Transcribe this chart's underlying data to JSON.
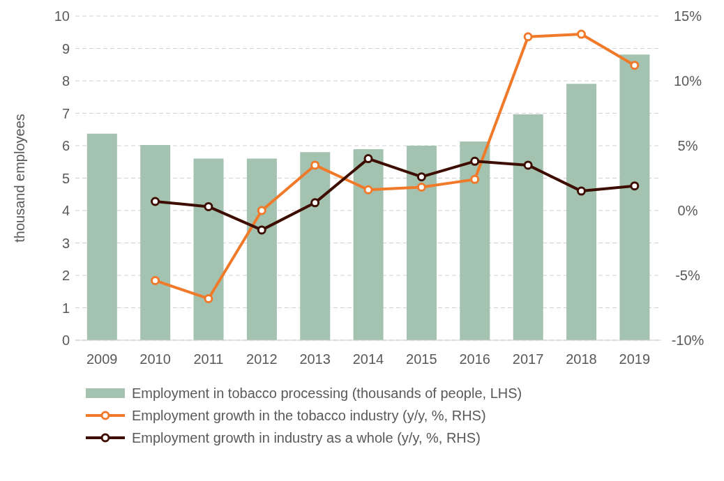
{
  "chart_data": {
    "type": "bar",
    "ylabel": "thousand employees",
    "categories": [
      "2009",
      "2010",
      "2011",
      "2012",
      "2013",
      "2014",
      "2015",
      "2016",
      "2017",
      "2018",
      "2019"
    ],
    "ylim": [
      0,
      10
    ],
    "yticks": [
      0,
      1,
      2,
      3,
      4,
      5,
      6,
      7,
      8,
      9,
      10
    ],
    "y2lim": [
      -10,
      15
    ],
    "y2ticks": [
      {
        "value": -10,
        "label": "-10%"
      },
      {
        "value": -5,
        "label": "-5%"
      },
      {
        "value": 0,
        "label": "0%"
      },
      {
        "value": 5,
        "label": "5%"
      },
      {
        "value": 10,
        "label": "10%"
      },
      {
        "value": 15,
        "label": "15%"
      }
    ],
    "grid": "y",
    "legend": "bottom",
    "marker": "circle",
    "series": [
      {
        "name": "Employment in tobacco processing (thousands of people, LHS)",
        "color": "#a3c2b0",
        "values": [
          6.37,
          6.02,
          5.6,
          5.6,
          5.8,
          5.89,
          6.0,
          6.13,
          6.97,
          7.91,
          8.81
        ]
      },
      {
        "type": "line",
        "axis": "y2",
        "name": "Employment growth in the tobacco industry (y/y, %, RHS)",
        "color": "#f07a2a",
        "values": [
          null,
          -5.4,
          -6.8,
          0.0,
          3.5,
          1.6,
          1.8,
          2.4,
          13.4,
          13.6,
          11.2
        ]
      },
      {
        "type": "line",
        "axis": "y2",
        "name": "Employment growth in industry as a whole (y/y, %, RHS)",
        "color": "#3d0e00",
        "values": [
          null,
          0.7,
          0.3,
          -1.5,
          0.6,
          4.0,
          2.6,
          3.8,
          3.5,
          1.5,
          1.9
        ]
      }
    ]
  }
}
